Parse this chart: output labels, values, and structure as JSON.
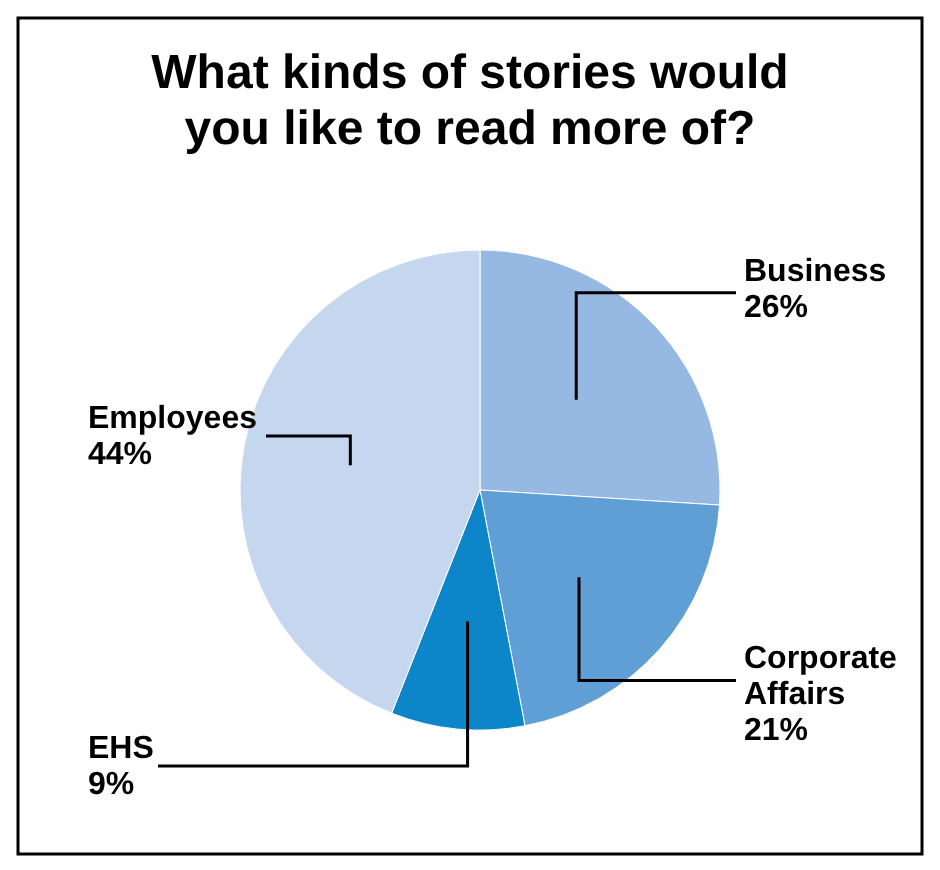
{
  "chart_data": {
    "type": "pie",
    "title": "What kinds of stories would you like to read more of?",
    "categories": [
      "Business",
      "Corporate Affairs",
      "EHS",
      "Employees"
    ],
    "values": [
      26,
      21,
      9,
      44
    ],
    "colors": [
      "#95b9e3",
      "#5f9fd6",
      "#0d85c9",
      "#c5d7ee"
    ],
    "value_labels": [
      "26%",
      "21%",
      "9%",
      "44%"
    ]
  }
}
